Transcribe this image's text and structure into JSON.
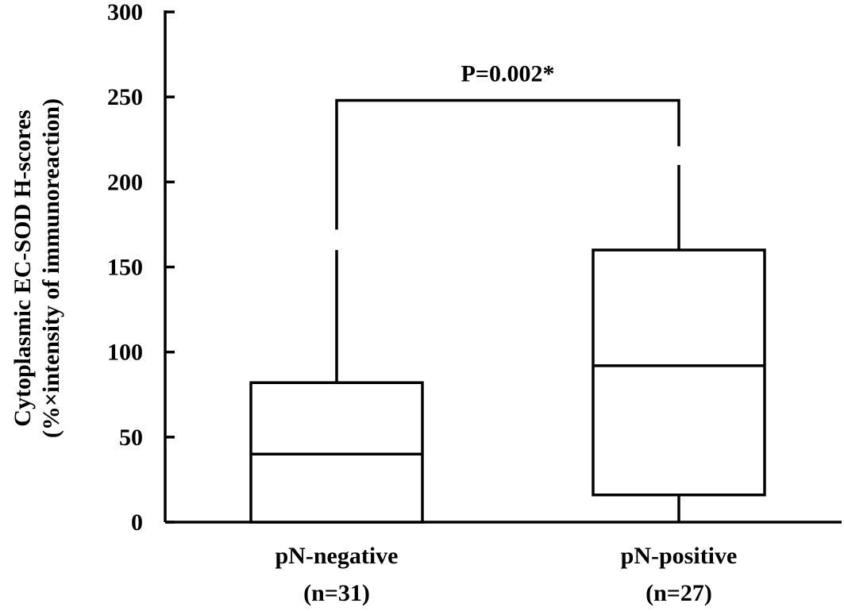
{
  "chart_data": {
    "type": "box",
    "title": "",
    "ylabel_lines": [
      "Cytoplasmic EC-SOD H-scores",
      "(%×intensity of  immunoreaction)"
    ],
    "xlabel": "",
    "ylim": [
      0,
      300
    ],
    "yticks": [
      0,
      50,
      100,
      150,
      200,
      250,
      300
    ],
    "yticks_labels": [
      "0",
      "50",
      "100",
      "150",
      "200",
      "250",
      "300"
    ],
    "grid": false,
    "groups": [
      {
        "name": "pN-negative",
        "n_label": "(n=31)",
        "min": 0,
        "q1": 0,
        "median": 40,
        "q3": 82,
        "max": 160
      },
      {
        "name": "pN-positive",
        "n_label": "(n=27)",
        "min": 0,
        "q1": 16,
        "median": 92,
        "q3": 160,
        "max": 210
      }
    ],
    "annotation": {
      "text": "P=0.002*",
      "bracket_y": 248,
      "left_drop_to": 172,
      "right_drop_to": 221
    }
  }
}
